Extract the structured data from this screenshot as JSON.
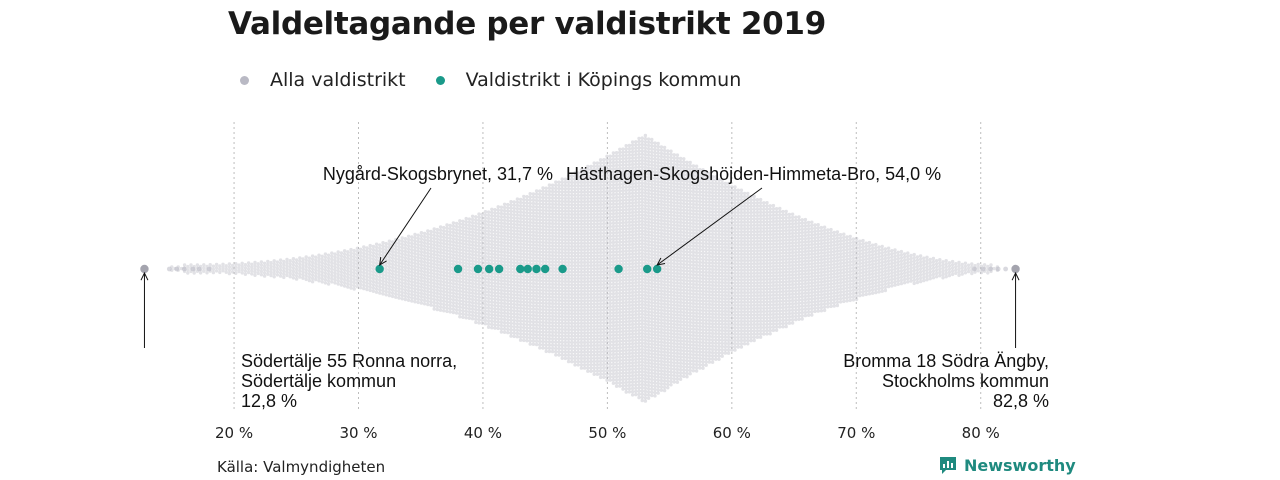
{
  "title": "Valdeltagande per valdistrikt 2019",
  "legend": [
    {
      "label": "Alla valdistrikt",
      "color": "#b9b9c4"
    },
    {
      "label": "Valdistrikt i Köpings kommun",
      "color": "#1a9a8a"
    }
  ],
  "source": "Källa: Valmyndigheten",
  "brand": "Newsworthy",
  "chart_data": {
    "type": "scatter",
    "subtype": "beeswarm",
    "title": "Valdeltagande per valdistrikt 2019",
    "x_unit": "%",
    "xlim": [
      12,
      84
    ],
    "x_ticks": [
      20,
      30,
      40,
      50,
      60,
      70,
      80
    ],
    "x_tick_labels": [
      "20 %",
      "30 %",
      "40 %",
      "50 %",
      "60 %",
      "70 %",
      "80 %"
    ],
    "grid": "vertical dotted",
    "legend_placement": "top-left",
    "series": [
      {
        "name": "Alla valdistrikt",
        "color": "#b9b9c4",
        "distribution_note_values": {
          "min": 12.8,
          "max": 82.8,
          "peak_density_near": 53
        }
      },
      {
        "name": "Valdistrikt i Köpings kommun",
        "color": "#1a9a8a",
        "x": [
          31.7,
          38.0,
          39.6,
          40.5,
          41.3,
          43.0,
          43.6,
          44.3,
          45.0,
          46.4,
          50.9,
          53.2,
          54.0
        ]
      }
    ],
    "annotations": [
      {
        "lines": [
          "Nygård-Skogsbrynet, 31,7 %"
        ],
        "x": 31.7
      },
      {
        "lines": [
          "Hästhagen-Skogshöjden-Himmeta-Bro, 54,0 %"
        ],
        "x": 54.0
      },
      {
        "lines": [
          "Södertälje 55 Ronna norra,",
          "Södertälje kommun",
          "12,8 %"
        ],
        "x": 12.8
      },
      {
        "lines": [
          "Bromma 18 Södra Ängby,",
          "Stockholms kommun",
          "82,8 %"
        ],
        "x": 82.8
      }
    ]
  }
}
